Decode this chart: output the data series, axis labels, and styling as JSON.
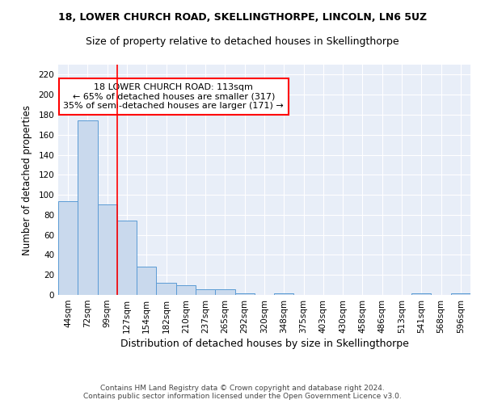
{
  "title1": "18, LOWER CHURCH ROAD, SKELLINGTHORPE, LINCOLN, LN6 5UZ",
  "title2": "Size of property relative to detached houses in Skellingthorpe",
  "xlabel": "Distribution of detached houses by size in Skellingthorpe",
  "ylabel": "Number of detached properties",
  "categories": [
    "44sqm",
    "72sqm",
    "99sqm",
    "127sqm",
    "154sqm",
    "182sqm",
    "210sqm",
    "237sqm",
    "265sqm",
    "292sqm",
    "320sqm",
    "348sqm",
    "375sqm",
    "403sqm",
    "430sqm",
    "458sqm",
    "486sqm",
    "513sqm",
    "541sqm",
    "568sqm",
    "596sqm"
  ],
  "values": [
    94,
    174,
    90,
    74,
    28,
    12,
    10,
    6,
    6,
    2,
    0,
    2,
    0,
    0,
    0,
    0,
    0,
    0,
    2,
    0,
    2
  ],
  "bar_color": "#c9d9ed",
  "bar_edge_color": "#5b9bd5",
  "red_line_index": 2,
  "annotation_lines": [
    "18 LOWER CHURCH ROAD: 113sqm",
    "← 65% of detached houses are smaller (317)",
    "35% of semi-detached houses are larger (171) →"
  ],
  "ylim": [
    0,
    230
  ],
  "yticks": [
    0,
    20,
    40,
    60,
    80,
    100,
    120,
    140,
    160,
    180,
    200,
    220
  ],
  "footer": "Contains HM Land Registry data © Crown copyright and database right 2024.\nContains public sector information licensed under the Open Government Licence v3.0.",
  "background_color": "#e8eef8",
  "grid_color": "#ffffff",
  "title1_fontsize": 9,
  "title2_fontsize": 9,
  "xlabel_fontsize": 9,
  "ylabel_fontsize": 8.5,
  "tick_fontsize": 7.5,
  "annotation_fontsize": 8,
  "footer_fontsize": 6.5
}
